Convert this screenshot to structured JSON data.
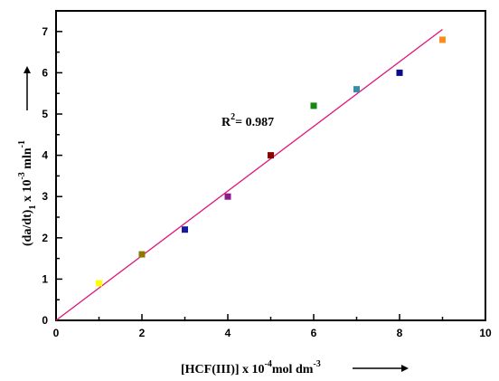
{
  "chart_data": {
    "type": "scatter",
    "xlim": [
      0,
      10
    ],
    "ylim": [
      0,
      7.5
    ],
    "x_ticks": [
      0,
      2,
      4,
      6,
      8,
      10
    ],
    "y_ticks": [
      0,
      1,
      2,
      3,
      4,
      5,
      6,
      7
    ],
    "grid": false,
    "x_label": {
      "prefix": "[HCF(III)] x 10",
      "exp": "-4",
      "mid": "mol dm",
      "exp2": "-3"
    },
    "y_label": {
      "prefix": "(da/dt)",
      "sub": "1",
      "mid": " x 10",
      "exp": "-3",
      "mid2": " mln",
      "exp2": "-1"
    },
    "annotation": {
      "prefix": "R",
      "exp": "2",
      "suffix": "= 0.987"
    },
    "points": [
      {
        "x": 1,
        "y": 0.9,
        "color": "#ffff00"
      },
      {
        "x": 2,
        "y": 1.6,
        "color": "#8a7a00"
      },
      {
        "x": 3,
        "y": 2.2,
        "color": "#1a1aa0"
      },
      {
        "x": 4,
        "y": 3.0,
        "color": "#8b1a8b"
      },
      {
        "x": 5,
        "y": 4.0,
        "color": "#8b0000"
      },
      {
        "x": 6,
        "y": 5.2,
        "color": "#128a12"
      },
      {
        "x": 7,
        "y": 5.6,
        "color": "#3a8aaa"
      },
      {
        "x": 8,
        "y": 6.0,
        "color": "#0a0a8a"
      },
      {
        "x": 9,
        "y": 6.8,
        "color": "#ff8c1a"
      }
    ],
    "fit_line": {
      "x1": 0,
      "y1": 0,
      "x2": 9,
      "y2": 7.05,
      "color": "#e0147a"
    }
  }
}
